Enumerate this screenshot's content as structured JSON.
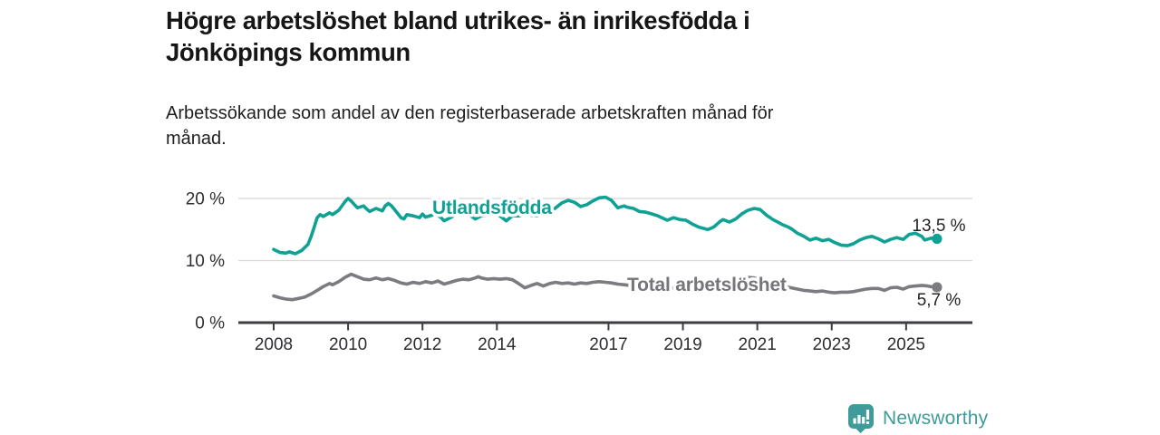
{
  "header": {
    "title_lines": [
      "Högre arbetslöshet bland utrikes- än inrikesfödda i",
      "Jönköpings kommun"
    ],
    "subtitle_lines": [
      "Arbetssökande som andel av den registerbaserade arbetskraften månad för",
      "månad."
    ]
  },
  "chart_data": {
    "type": "line",
    "title": "Högre arbetslöshet bland utrikes- än inrikesfödda i Jönköpings kommun",
    "subtitle": "Arbetssökande som andel av den registerbaserade arbetskraften månad för månad.",
    "unit": "%",
    "xlabel": "",
    "ylabel": "",
    "x_range": [
      2008,
      2025.83
    ],
    "ylim": [
      0,
      21.5
    ],
    "grid": "horizontal",
    "legend_position": "inline-labels",
    "yticks": [
      {
        "v": 20,
        "label": "20 %"
      },
      {
        "v": 10,
        "label": "10 %"
      },
      {
        "v": 0,
        "label": "0 %"
      }
    ],
    "xticks": [
      {
        "v": 2008,
        "label": "2008"
      },
      {
        "v": 2010,
        "label": "2010"
      },
      {
        "v": 2012,
        "label": "2012"
      },
      {
        "v": 2014,
        "label": "2014"
      },
      {
        "v": 2017,
        "label": "2017"
      },
      {
        "v": 2019,
        "label": "2019"
      },
      {
        "v": 2021,
        "label": "2021"
      },
      {
        "v": 2023,
        "label": "2023"
      },
      {
        "v": 2025,
        "label": "2025"
      }
    ],
    "series": [
      {
        "name": "Utlandsfödda",
        "color": "#0fa294",
        "end_label": "13,5 %",
        "end_value": 13.5,
        "points": [
          [
            2008.0,
            11.8
          ],
          [
            2008.17,
            11.3
          ],
          [
            2008.33,
            11.2
          ],
          [
            2008.42,
            11.4
          ],
          [
            2008.58,
            11.1
          ],
          [
            2008.75,
            11.6
          ],
          [
            2008.92,
            12.6
          ],
          [
            2009.0,
            13.8
          ],
          [
            2009.08,
            15.2
          ],
          [
            2009.17,
            16.9
          ],
          [
            2009.25,
            17.4
          ],
          [
            2009.33,
            17.1
          ],
          [
            2009.5,
            17.7
          ],
          [
            2009.58,
            17.4
          ],
          [
            2009.75,
            18.1
          ],
          [
            2009.92,
            19.5
          ],
          [
            2010.0,
            20.0
          ],
          [
            2010.08,
            19.6
          ],
          [
            2010.17,
            19.0
          ],
          [
            2010.25,
            18.5
          ],
          [
            2010.42,
            18.8
          ],
          [
            2010.5,
            18.3
          ],
          [
            2010.58,
            17.9
          ],
          [
            2010.75,
            18.4
          ],
          [
            2010.92,
            18.0
          ],
          [
            2011.0,
            18.8
          ],
          [
            2011.08,
            19.2
          ],
          [
            2011.17,
            18.8
          ],
          [
            2011.33,
            17.6
          ],
          [
            2011.42,
            16.9
          ],
          [
            2011.5,
            16.7
          ],
          [
            2011.58,
            17.4
          ],
          [
            2011.75,
            17.2
          ],
          [
            2011.92,
            16.9
          ],
          [
            2012.0,
            17.5
          ],
          [
            2012.08,
            17.0
          ],
          [
            2012.25,
            17.3
          ],
          [
            2012.33,
            17.6
          ],
          [
            2012.5,
            16.9
          ],
          [
            2012.58,
            16.4
          ],
          [
            2012.75,
            16.9
          ],
          [
            2012.92,
            17.5
          ],
          [
            2013.08,
            17.6
          ],
          [
            2013.25,
            17.4
          ],
          [
            2013.42,
            16.7
          ],
          [
            2013.58,
            17.2
          ],
          [
            2013.75,
            17.3
          ],
          [
            2013.92,
            17.5
          ],
          [
            2014.08,
            17.2
          ],
          [
            2014.25,
            16.4
          ],
          [
            2014.42,
            17.2
          ],
          [
            2014.58,
            17.2
          ],
          [
            2014.75,
            17.4
          ],
          [
            2014.92,
            17.3
          ],
          [
            2015.08,
            17.2
          ],
          [
            2015.25,
            17.4
          ],
          [
            2015.42,
            17.8
          ],
          [
            2015.58,
            18.5
          ],
          [
            2015.75,
            19.3
          ],
          [
            2015.92,
            19.7
          ],
          [
            2016.08,
            19.4
          ],
          [
            2016.25,
            18.7
          ],
          [
            2016.42,
            19.0
          ],
          [
            2016.58,
            19.6
          ],
          [
            2016.75,
            20.1
          ],
          [
            2016.92,
            20.2
          ],
          [
            2017.08,
            19.7
          ],
          [
            2017.25,
            18.5
          ],
          [
            2017.42,
            18.8
          ],
          [
            2017.5,
            18.6
          ],
          [
            2017.67,
            18.4
          ],
          [
            2017.83,
            17.9
          ],
          [
            2018.0,
            17.8
          ],
          [
            2018.17,
            17.5
          ],
          [
            2018.33,
            17.2
          ],
          [
            2018.58,
            16.5
          ],
          [
            2018.75,
            16.9
          ],
          [
            2018.92,
            16.6
          ],
          [
            2019.08,
            16.5
          ],
          [
            2019.25,
            15.9
          ],
          [
            2019.42,
            15.4
          ],
          [
            2019.67,
            15.0
          ],
          [
            2019.83,
            15.4
          ],
          [
            2020.0,
            16.3
          ],
          [
            2020.08,
            16.6
          ],
          [
            2020.25,
            16.2
          ],
          [
            2020.42,
            16.7
          ],
          [
            2020.58,
            17.5
          ],
          [
            2020.75,
            18.1
          ],
          [
            2020.92,
            18.4
          ],
          [
            2021.08,
            18.2
          ],
          [
            2021.25,
            17.3
          ],
          [
            2021.42,
            16.6
          ],
          [
            2021.58,
            16.1
          ],
          [
            2021.67,
            15.8
          ],
          [
            2021.83,
            15.4
          ],
          [
            2021.92,
            15.1
          ],
          [
            2022.08,
            14.4
          ],
          [
            2022.25,
            13.9
          ],
          [
            2022.42,
            13.3
          ],
          [
            2022.58,
            13.6
          ],
          [
            2022.75,
            13.2
          ],
          [
            2022.92,
            13.4
          ],
          [
            2023.08,
            12.9
          ],
          [
            2023.25,
            12.5
          ],
          [
            2023.42,
            12.4
          ],
          [
            2023.58,
            12.7
          ],
          [
            2023.75,
            13.3
          ],
          [
            2023.92,
            13.7
          ],
          [
            2024.08,
            13.9
          ],
          [
            2024.25,
            13.5
          ],
          [
            2024.42,
            13.0
          ],
          [
            2024.58,
            13.4
          ],
          [
            2024.75,
            13.7
          ],
          [
            2024.92,
            13.4
          ],
          [
            2025.08,
            14.2
          ],
          [
            2025.25,
            14.4
          ],
          [
            2025.42,
            13.9
          ],
          [
            2025.5,
            13.3
          ],
          [
            2025.67,
            13.6
          ],
          [
            2025.83,
            13.5
          ]
        ]
      },
      {
        "name": "Total arbetslöshet",
        "color": "#7b7b80",
        "end_label": "5,7 %",
        "end_value": 5.7,
        "points": [
          [
            2008.0,
            4.3
          ],
          [
            2008.17,
            4.0
          ],
          [
            2008.33,
            3.8
          ],
          [
            2008.5,
            3.7
          ],
          [
            2008.67,
            3.9
          ],
          [
            2008.83,
            4.1
          ],
          [
            2009.0,
            4.6
          ],
          [
            2009.17,
            5.2
          ],
          [
            2009.33,
            5.8
          ],
          [
            2009.5,
            6.3
          ],
          [
            2009.58,
            6.1
          ],
          [
            2009.75,
            6.6
          ],
          [
            2009.92,
            7.3
          ],
          [
            2010.08,
            7.8
          ],
          [
            2010.25,
            7.4
          ],
          [
            2010.42,
            7.0
          ],
          [
            2010.58,
            6.9
          ],
          [
            2010.75,
            7.2
          ],
          [
            2010.92,
            6.9
          ],
          [
            2011.08,
            7.1
          ],
          [
            2011.25,
            6.8
          ],
          [
            2011.42,
            6.4
          ],
          [
            2011.58,
            6.2
          ],
          [
            2011.75,
            6.5
          ],
          [
            2011.92,
            6.3
          ],
          [
            2012.08,
            6.6
          ],
          [
            2012.25,
            6.4
          ],
          [
            2012.42,
            6.7
          ],
          [
            2012.58,
            6.2
          ],
          [
            2012.75,
            6.5
          ],
          [
            2012.92,
            6.8
          ],
          [
            2013.08,
            7.0
          ],
          [
            2013.25,
            6.9
          ],
          [
            2013.42,
            7.2
          ],
          [
            2013.5,
            7.4
          ],
          [
            2013.58,
            7.2
          ],
          [
            2013.75,
            7.0
          ],
          [
            2013.92,
            7.1
          ],
          [
            2014.08,
            7.0
          ],
          [
            2014.25,
            7.1
          ],
          [
            2014.42,
            6.9
          ],
          [
            2014.58,
            6.3
          ],
          [
            2014.75,
            5.6
          ],
          [
            2014.92,
            6.0
          ],
          [
            2015.08,
            6.3
          ],
          [
            2015.25,
            5.9
          ],
          [
            2015.42,
            6.3
          ],
          [
            2015.58,
            6.5
          ],
          [
            2015.75,
            6.3
          ],
          [
            2015.92,
            6.4
          ],
          [
            2016.08,
            6.2
          ],
          [
            2016.25,
            6.4
          ],
          [
            2016.42,
            6.3
          ],
          [
            2016.58,
            6.5
          ],
          [
            2016.75,
            6.6
          ],
          [
            2016.92,
            6.5
          ],
          [
            2017.08,
            6.4
          ],
          [
            2017.25,
            6.2
          ],
          [
            2017.42,
            6.1
          ],
          [
            2017.58,
            6.0
          ],
          [
            2017.75,
            5.9
          ],
          [
            2017.92,
            5.8
          ],
          [
            2018.08,
            5.9
          ],
          [
            2018.25,
            5.7
          ],
          [
            2018.42,
            5.6
          ],
          [
            2018.58,
            5.5
          ],
          [
            2018.75,
            5.6
          ],
          [
            2018.92,
            5.5
          ],
          [
            2019.08,
            5.4
          ],
          [
            2019.25,
            5.3
          ],
          [
            2019.42,
            5.4
          ],
          [
            2019.58,
            5.5
          ],
          [
            2019.75,
            5.6
          ],
          [
            2019.92,
            5.9
          ],
          [
            2020.08,
            6.3
          ],
          [
            2020.25,
            6.7
          ],
          [
            2020.42,
            7.0
          ],
          [
            2020.58,
            7.2
          ],
          [
            2020.75,
            7.3
          ],
          [
            2020.92,
            7.2
          ],
          [
            2021.08,
            7.0
          ],
          [
            2021.25,
            6.7
          ],
          [
            2021.42,
            6.4
          ],
          [
            2021.58,
            6.1
          ],
          [
            2021.75,
            5.8
          ],
          [
            2021.92,
            5.6
          ],
          [
            2022.08,
            5.4
          ],
          [
            2022.25,
            5.2
          ],
          [
            2022.42,
            5.1
          ],
          [
            2022.58,
            5.0
          ],
          [
            2022.75,
            5.1
          ],
          [
            2022.92,
            4.9
          ],
          [
            2023.08,
            4.8
          ],
          [
            2023.25,
            4.9
          ],
          [
            2023.42,
            4.9
          ],
          [
            2023.58,
            5.0
          ],
          [
            2023.75,
            5.2
          ],
          [
            2023.92,
            5.4
          ],
          [
            2024.08,
            5.5
          ],
          [
            2024.25,
            5.5
          ],
          [
            2024.42,
            5.2
          ],
          [
            2024.58,
            5.6
          ],
          [
            2024.75,
            5.7
          ],
          [
            2024.92,
            5.4
          ],
          [
            2025.08,
            5.8
          ],
          [
            2025.25,
            5.9
          ],
          [
            2025.42,
            6.0
          ],
          [
            2025.58,
            5.9
          ],
          [
            2025.67,
            5.8
          ],
          [
            2025.83,
            5.7
          ]
        ]
      }
    ]
  },
  "colors": {
    "accent_teal": "#0fa294",
    "line_gray": "#7b7b80",
    "gridline": "#d8d8d8",
    "axis": "#3d3d42",
    "tick_text": "#2d2d32",
    "title_text": "#161616",
    "brand_teal": "#3f9b99"
  },
  "footer": {
    "brand": "Newsworthy"
  }
}
